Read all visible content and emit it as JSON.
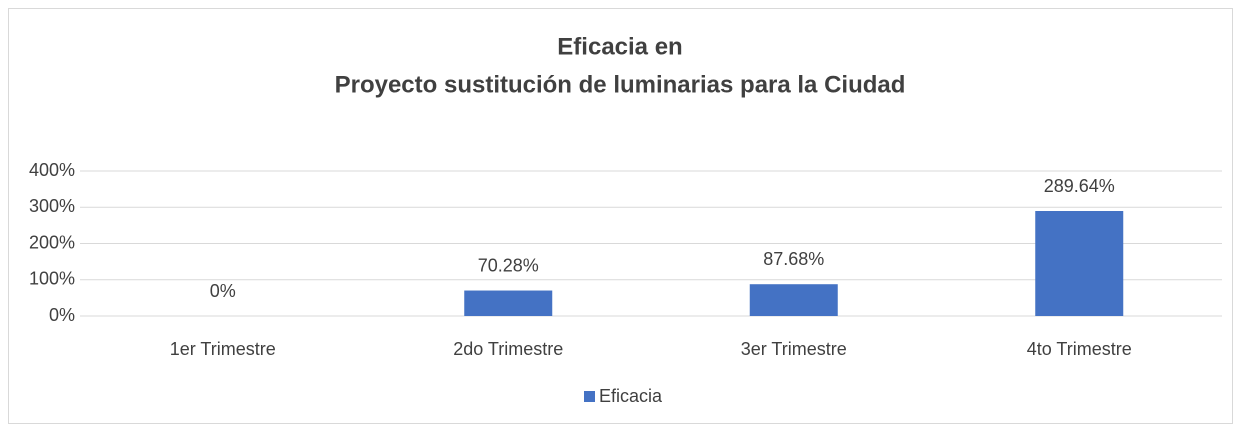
{
  "chart_data": {
    "type": "bar",
    "title": [
      "Eficacia en",
      "Proyecto sustitución de luminarias para la Ciudad"
    ],
    "categories": [
      "1er Trimestre",
      "2do Trimestre",
      "3er Trimestre",
      "4to Trimestre"
    ],
    "series": [
      {
        "name": "Eficacia",
        "color": "#4472c4",
        "values": [
          0,
          70.28,
          87.68,
          289.64
        ],
        "value_labels": [
          "0%",
          "70.28%",
          "87.68%",
          "289.64%"
        ]
      }
    ],
    "ylim": [
      0,
      400
    ],
    "yticks": [
      {
        "value": 0,
        "label": "0%"
      },
      {
        "value": 100,
        "label": "100%"
      },
      {
        "value": 200,
        "label": "200%"
      },
      {
        "value": 300,
        "label": "300%"
      },
      {
        "value": 400,
        "label": "400%"
      }
    ],
    "grid": true,
    "legend": "bottom"
  }
}
